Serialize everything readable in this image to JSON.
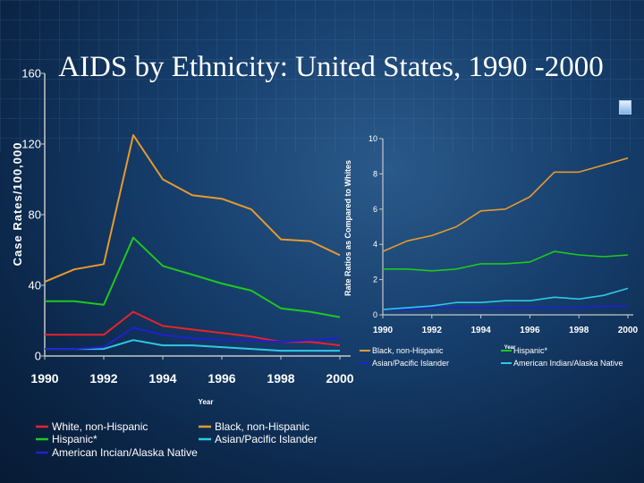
{
  "slide_title": "AIDS by Ethnicity: United States, 1990 -2000",
  "chart_data": [
    {
      "type": "line",
      "title": "",
      "ylabel": "Case Rates/100,000",
      "xlabel": "Year",
      "ylim": [
        0,
        160
      ],
      "yticks": [
        0,
        40,
        80,
        120,
        160
      ],
      "xlim": [
        1990,
        2000
      ],
      "xticks": [
        1990,
        1992,
        1994,
        1996,
        1998,
        2000
      ],
      "x": [
        1990,
        1991,
        1992,
        1993,
        1994,
        1995,
        1996,
        1997,
        1998,
        1999,
        2000
      ],
      "series": [
        {
          "name": "White, non-Hispanic",
          "color": "#e6232b",
          "values": [
            12,
            12,
            12,
            25,
            17,
            15,
            13,
            11,
            8,
            8,
            6
          ]
        },
        {
          "name": "Black, non-Hispanic",
          "color": "#e69a2e",
          "values": [
            42,
            49,
            52,
            125,
            100,
            91,
            89,
            83,
            66,
            65,
            57
          ]
        },
        {
          "name": "Hispanic*",
          "color": "#1ec81e",
          "values": [
            31,
            31,
            29,
            67,
            51,
            46,
            41,
            37,
            27,
            25,
            22
          ]
        },
        {
          "name": "Asian/Pacific Islander",
          "color": "#2ec8e6",
          "values": [
            4,
            4,
            4,
            9,
            6,
            6,
            5,
            4,
            3,
            3,
            3
          ]
        },
        {
          "name": "American Incian/Alaska Native",
          "color": "#2020d0",
          "values": [
            4,
            4,
            5,
            16,
            12,
            10,
            9,
            9,
            8,
            9,
            10
          ]
        }
      ],
      "legend": [
        "White, non-Hispanic",
        "Black, non-Hispanic",
        "Hispanic*",
        "Asian/Pacific Islander",
        "American Incian/Alaska Native"
      ]
    },
    {
      "type": "line",
      "title": "",
      "ylabel": "Rate Ratios as Compared to Whites",
      "xlabel": "Year",
      "ylim": [
        0,
        10
      ],
      "yticks": [
        0,
        2,
        4,
        6,
        8,
        10
      ],
      "xlim": [
        1990,
        2000
      ],
      "xticks": [
        1990,
        1992,
        1994,
        1996,
        1998,
        2000
      ],
      "x": [
        1990,
        1991,
        1992,
        1993,
        1994,
        1995,
        1996,
        1997,
        1998,
        1999,
        2000
      ],
      "series": [
        {
          "name": "Black, non-Hispanic",
          "color": "#e69a2e",
          "values": [
            3.6,
            4.2,
            4.5,
            5.0,
            5.9,
            6.0,
            6.7,
            8.1,
            8.1,
            8.5,
            8.9
          ]
        },
        {
          "name": "Hispanic*",
          "color": "#1ec81e",
          "values": [
            2.6,
            2.6,
            2.5,
            2.6,
            2.9,
            2.9,
            3.0,
            3.6,
            3.4,
            3.3,
            3.4
          ]
        },
        {
          "name": "Asian/Pacific Islander",
          "color": "#2020d0",
          "values": [
            0.3,
            0.3,
            0.4,
            0.4,
            0.4,
            0.4,
            0.4,
            0.4,
            0.4,
            0.5,
            0.5
          ]
        },
        {
          "name": "American Indian/Alaska Native",
          "color": "#2ec8e6",
          "values": [
            0.3,
            0.4,
            0.5,
            0.7,
            0.7,
            0.8,
            0.8,
            1.0,
            0.9,
            1.1,
            1.5
          ]
        }
      ],
      "legend": [
        "Black, non-Hispanic",
        "Hispanic*",
        "Asian/Pacific Islander",
        "American Indian/Alaska Native"
      ]
    }
  ]
}
